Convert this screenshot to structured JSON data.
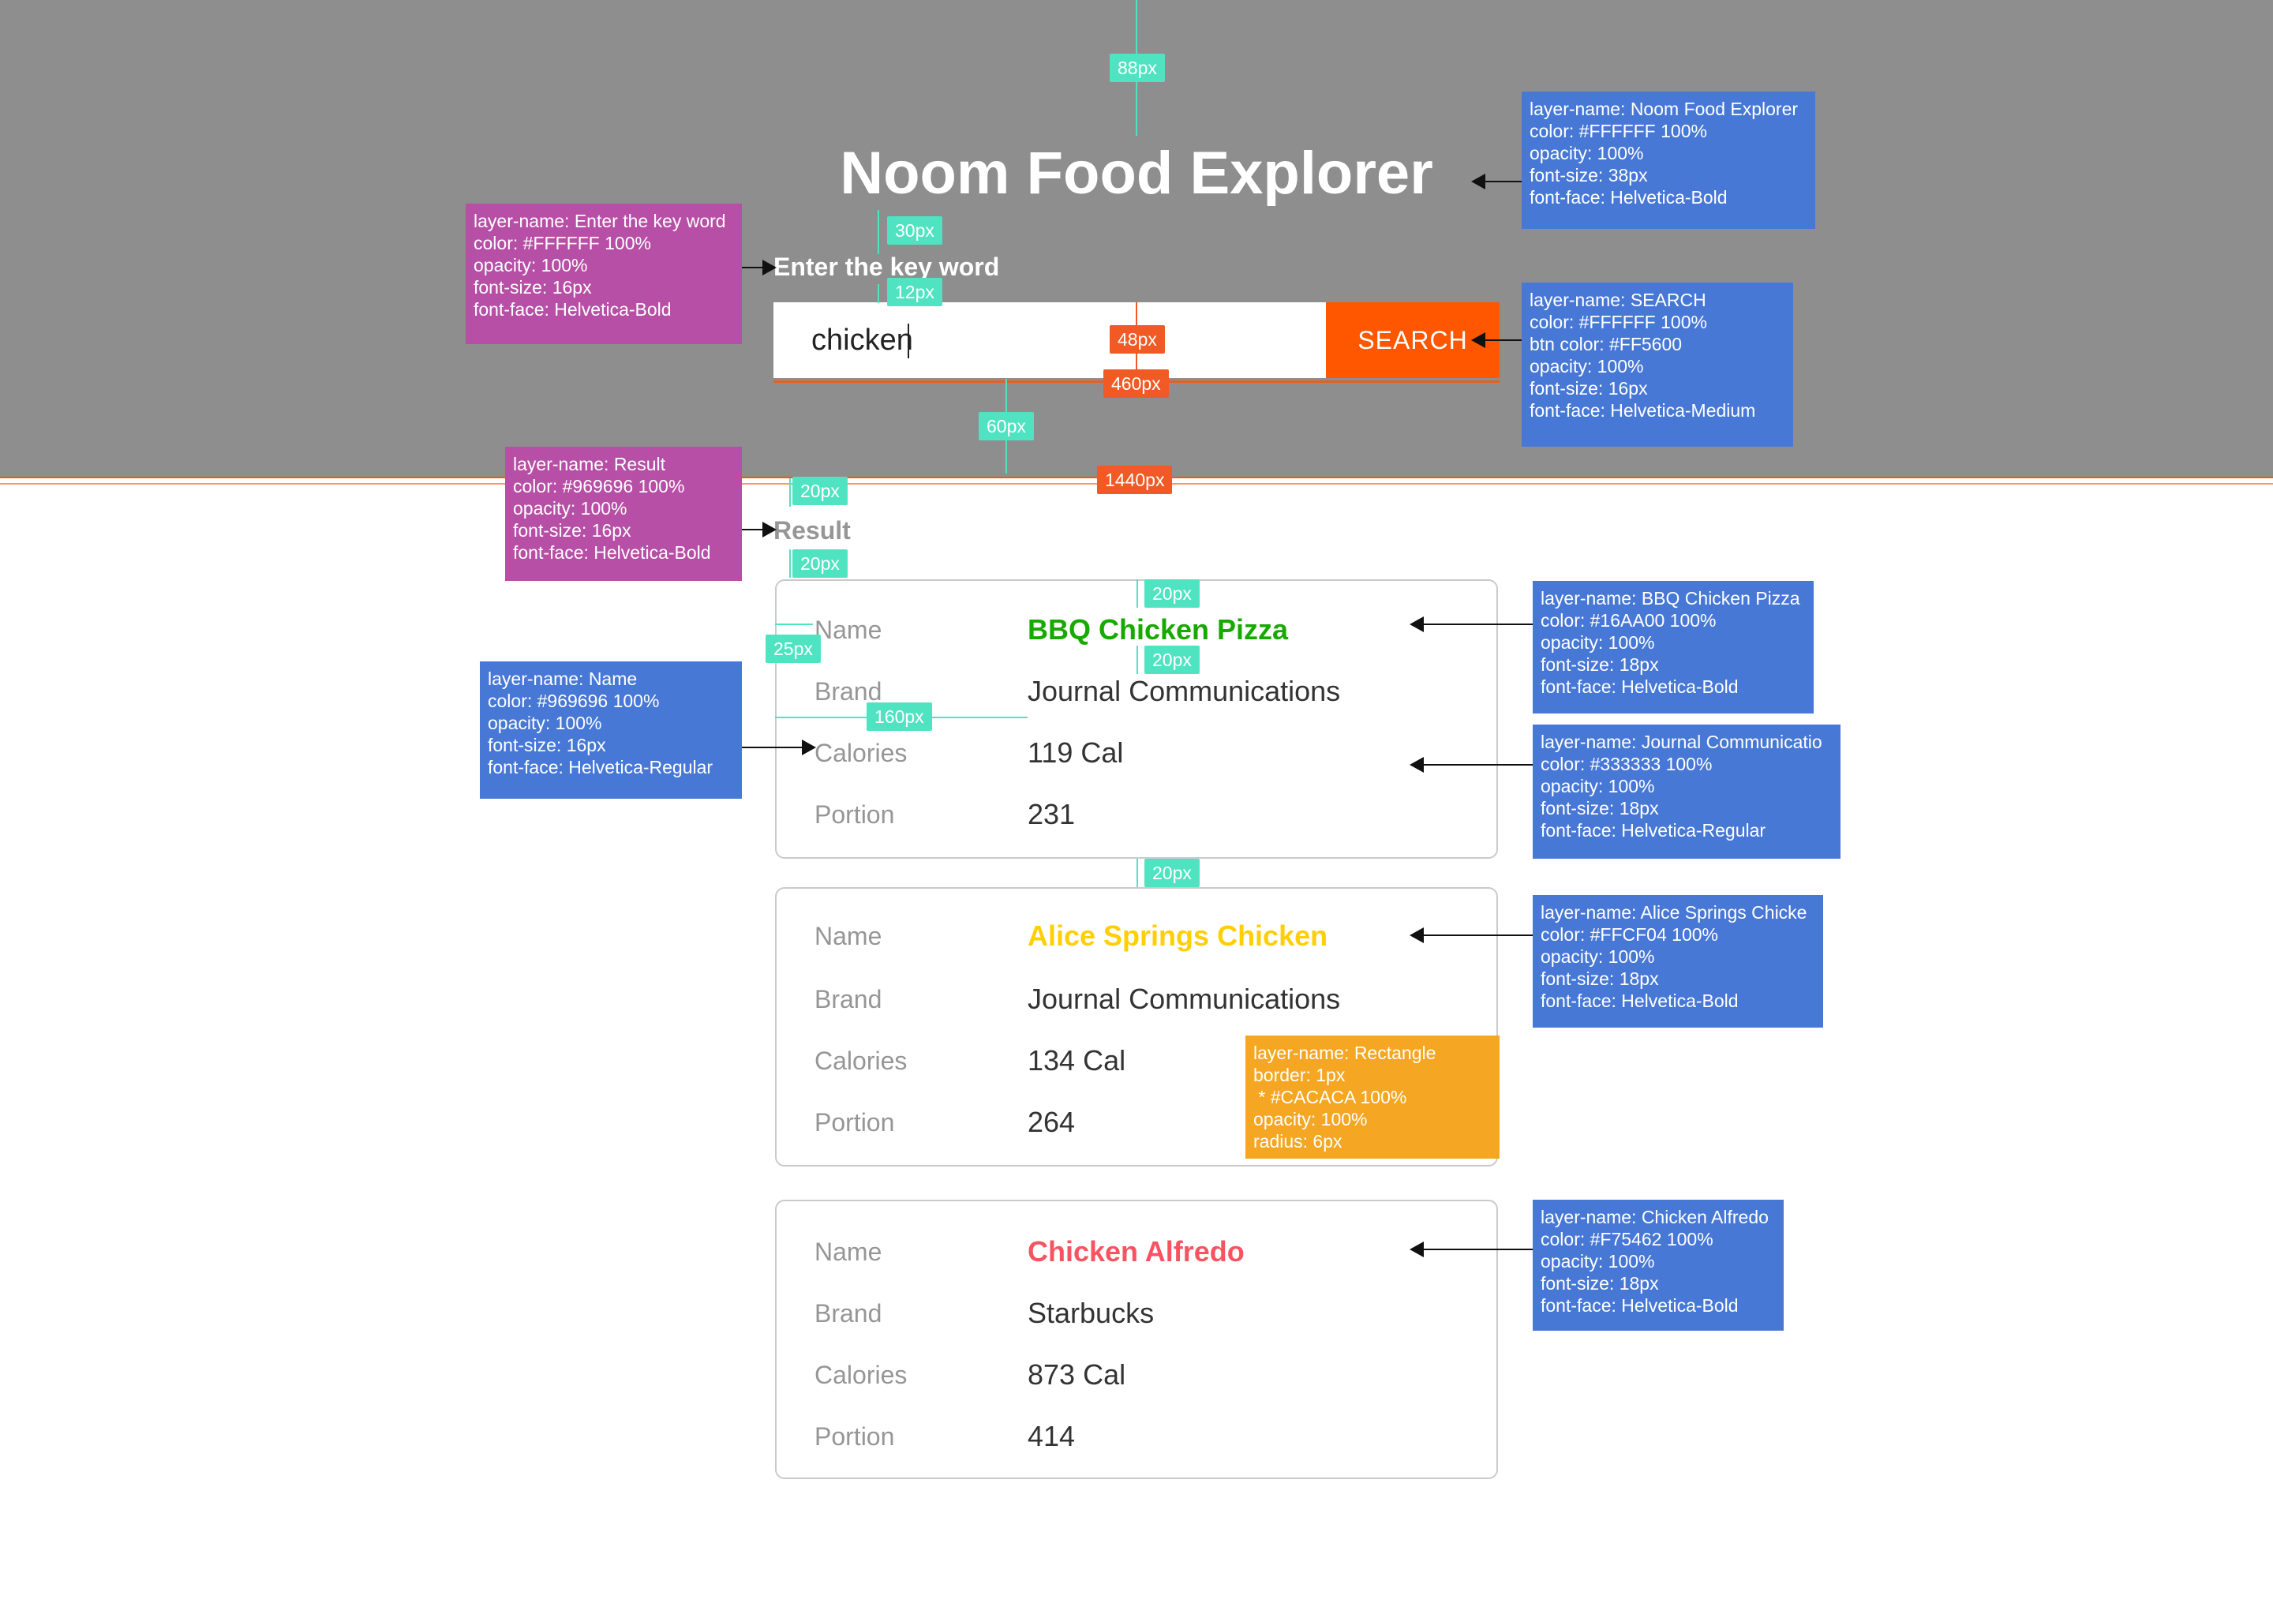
{
  "header": {
    "title": "Noom Food Explorer",
    "search_label": "Enter the key word",
    "search_value": "chicken",
    "search_button": "SEARCH"
  },
  "results": {
    "label": "Result",
    "field_labels": {
      "name": "Name",
      "brand": "Brand",
      "calories": "Calories",
      "portion": "Portion"
    },
    "cards": [
      {
        "name": "BBQ Chicken Pizza",
        "name_color": "#16AA00",
        "brand": "Journal Communications",
        "calories": "119 Cal",
        "portion": "231"
      },
      {
        "name": "Alice Springs Chicken",
        "name_color": "#FFCF04",
        "brand": "Journal Communications",
        "calories": "134 Cal",
        "portion": "264"
      },
      {
        "name": "Chicken Alfredo",
        "name_color": "#F75462",
        "brand": "Starbucks",
        "calories": "873 Cal",
        "portion": "414"
      }
    ]
  },
  "colors": {
    "header_bg": "#8E8E8E",
    "accent": "#FF5600",
    "label_gray": "#969696",
    "value_dark": "#333333",
    "card_border": "#CACACA",
    "measure": "#50E3C2"
  },
  "annotations": {
    "title_spec": "layer-name: Noom Food Explorer\ncolor: #FFFFFF 100%\nopacity: 100%\nfont-size: 38px\nfont-face: Helvetica-Bold",
    "keyword_spec": "layer-name: Enter the key word\ncolor: #FFFFFF 100%\nopacity: 100%\nfont-size: 16px\nfont-face: Helvetica-Bold",
    "search_spec": "layer-name: SEARCH\ncolor: #FFFFFF 100%\nbtn color: #FF5600\nopacity: 100%\nfont-size: 16px\nfont-face: Helvetica-Medium",
    "result_spec": "layer-name: Result\ncolor: #969696 100%\nopacity: 100%\nfont-size: 16px\nfont-face: Helvetica-Bold",
    "bbq_spec": "layer-name: BBQ Chicken Pizza\ncolor: #16AA00 100%\nopacity: 100%\nfont-size: 18px\nfont-face: Helvetica-Bold",
    "name_spec": "layer-name: Name\ncolor: #969696 100%\nopacity: 100%\nfont-size: 16px\nfont-face: Helvetica-Regular",
    "journal_spec": "layer-name: Journal Communicatio\ncolor: #333333 100%\nopacity: 100%\nfont-size: 18px\nfont-face: Helvetica-Regular",
    "alice_spec": "layer-name: Alice Springs Chicke\ncolor: #FFCF04 100%\nopacity: 100%\nfont-size: 18px\nfont-face: Helvetica-Bold",
    "rect_spec": "layer-name: Rectangle\nborder: 1px\n * #CACACA 100%\nopacity: 100%\nradius: 6px",
    "alfredo_spec": "layer-name: Chicken Alfredo\ncolor: #F75462 100%\nopacity: 100%\nfont-size: 18px\nfont-face: Helvetica-Bold",
    "m_88": "88px",
    "m_30": "30px",
    "m_12": "12px",
    "m_48": "48px",
    "m_460": "460px",
    "m_60": "60px",
    "m_1440": "1440px",
    "m_20a": "20px",
    "m_20b": "20px",
    "m_20c": "20px",
    "m_20d": "20px",
    "m_25": "25px",
    "m_160": "160px",
    "m_20e": "20px"
  }
}
